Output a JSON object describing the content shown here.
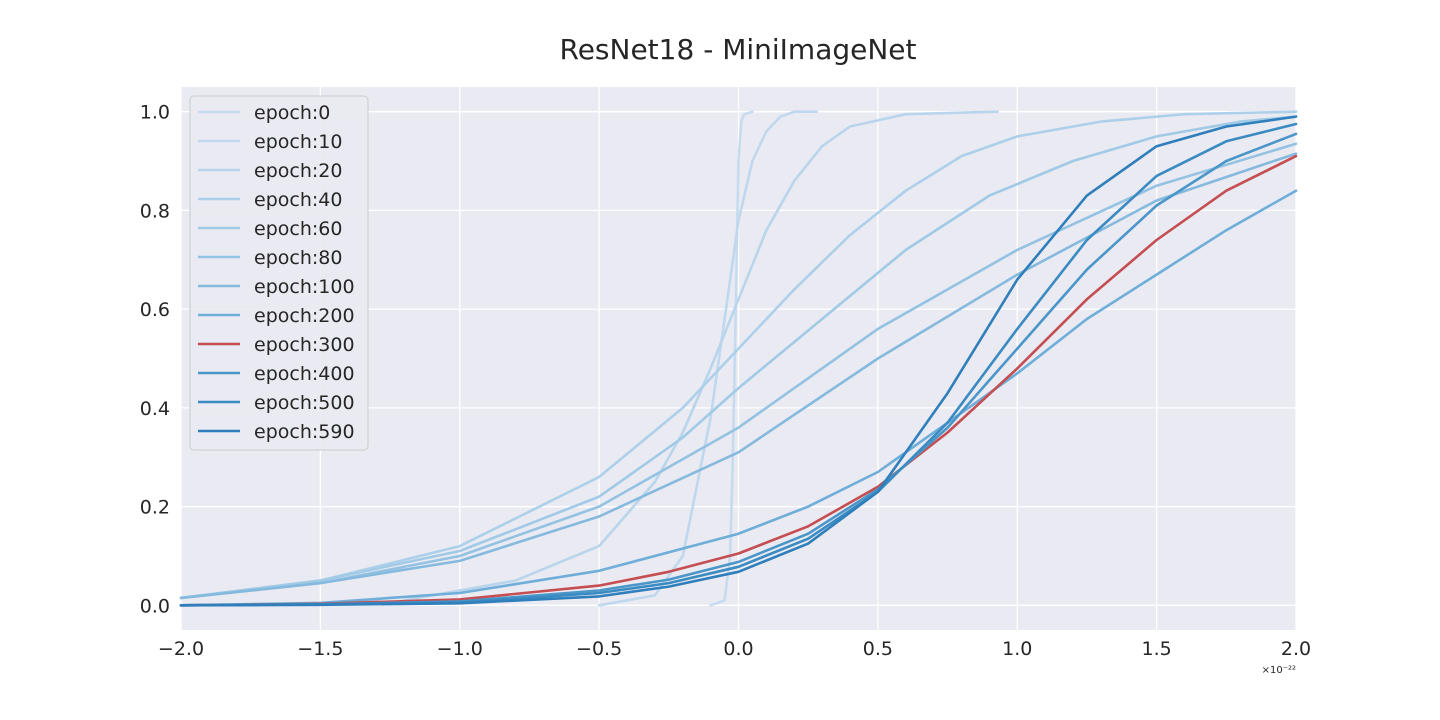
{
  "chart_data": {
    "type": "line",
    "title": "ResNet18 - MiniImageNet",
    "xlabel": "",
    "ylabel": "",
    "x_offset_label": "×10⁻²²",
    "xlim": [
      -2.0,
      2.0
    ],
    "ylim": [
      -0.05,
      1.05
    ],
    "xticks": [
      -2.0,
      -1.5,
      -1.0,
      -0.5,
      0.0,
      0.5,
      1.0,
      1.5,
      2.0
    ],
    "xtick_labels": [
      "−2.0",
      "−1.5",
      "−1.0",
      "−0.5",
      "0.0",
      "0.5",
      "1.0",
      "1.5",
      "2.0"
    ],
    "yticks": [
      0.0,
      0.2,
      0.4,
      0.6,
      0.8,
      1.0
    ],
    "ytick_labels": [
      "0.0",
      "0.2",
      "0.4",
      "0.6",
      "0.8",
      "1.0"
    ],
    "grid": true,
    "background": "#eaeaf2",
    "legend_position": "top-left",
    "series": [
      {
        "name": "epoch:0",
        "color": "#c6dbef",
        "x": [
          -0.1,
          -0.05,
          -0.03,
          -0.02,
          -0.01,
          0.0,
          0.01,
          0.02,
          0.05
        ],
        "y": [
          0.0,
          0.01,
          0.1,
          0.3,
          0.6,
          0.9,
          0.98,
          0.995,
          1.0
        ]
      },
      {
        "name": "epoch:10",
        "color": "#bfd8ee",
        "x": [
          -0.5,
          -0.3,
          -0.2,
          -0.1,
          -0.05,
          0.0,
          0.05,
          0.1,
          0.15,
          0.2,
          0.28
        ],
        "y": [
          0.0,
          0.02,
          0.1,
          0.38,
          0.58,
          0.78,
          0.9,
          0.96,
          0.99,
          1.0,
          1.0
        ]
      },
      {
        "name": "epoch:20",
        "color": "#b8d5ec",
        "x": [
          -1.2,
          -0.8,
          -0.5,
          -0.3,
          -0.2,
          -0.1,
          0.0,
          0.1,
          0.2,
          0.3,
          0.4,
          0.6,
          0.93
        ],
        "y": [
          0.01,
          0.05,
          0.12,
          0.25,
          0.35,
          0.48,
          0.62,
          0.76,
          0.86,
          0.93,
          0.97,
          0.995,
          1.0
        ]
      },
      {
        "name": "epoch:40",
        "color": "#add0ea",
        "x": [
          -2.0,
          -1.5,
          -1.0,
          -0.5,
          -0.2,
          0.0,
          0.2,
          0.4,
          0.6,
          0.8,
          1.0,
          1.3,
          1.6,
          2.0
        ],
        "y": [
          0.015,
          0.05,
          0.12,
          0.26,
          0.4,
          0.52,
          0.64,
          0.75,
          0.84,
          0.91,
          0.95,
          0.98,
          0.995,
          1.0
        ]
      },
      {
        "name": "epoch:60",
        "color": "#a1cae6",
        "x": [
          -2.0,
          -1.5,
          -1.0,
          -0.5,
          -0.2,
          0.0,
          0.3,
          0.6,
          0.9,
          1.2,
          1.5,
          1.8,
          2.0
        ],
        "y": [
          0.015,
          0.05,
          0.11,
          0.22,
          0.34,
          0.44,
          0.58,
          0.72,
          0.83,
          0.9,
          0.95,
          0.98,
          0.99
        ]
      },
      {
        "name": "epoch:80",
        "color": "#93c2e2",
        "x": [
          -2.0,
          -1.5,
          -1.0,
          -0.5,
          0.0,
          0.5,
          1.0,
          1.5,
          2.0
        ],
        "y": [
          0.015,
          0.045,
          0.1,
          0.2,
          0.36,
          0.56,
          0.72,
          0.85,
          0.935
        ]
      },
      {
        "name": "epoch:100",
        "color": "#85bade",
        "x": [
          -2.0,
          -1.5,
          -1.0,
          -0.5,
          0.0,
          0.5,
          1.0,
          1.5,
          2.0
        ],
        "y": [
          0.015,
          0.045,
          0.09,
          0.18,
          0.31,
          0.5,
          0.67,
          0.82,
          0.915
        ]
      },
      {
        "name": "epoch:200",
        "color": "#6eaed8",
        "x": [
          -2.0,
          -1.5,
          -1.0,
          -0.5,
          0.0,
          0.25,
          0.5,
          0.75,
          1.0,
          1.25,
          1.5,
          1.75,
          2.0
        ],
        "y": [
          0.0,
          0.005,
          0.025,
          0.07,
          0.145,
          0.2,
          0.27,
          0.37,
          0.47,
          0.58,
          0.67,
          0.76,
          0.84
        ]
      },
      {
        "name": "epoch:300",
        "color": "#c44e52",
        "x": [
          -2.0,
          -1.5,
          -1.0,
          -0.5,
          -0.25,
          0.0,
          0.25,
          0.5,
          0.75,
          1.0,
          1.25,
          1.5,
          1.75,
          2.0
        ],
        "y": [
          0.0,
          0.003,
          0.012,
          0.04,
          0.068,
          0.105,
          0.16,
          0.24,
          0.35,
          0.48,
          0.62,
          0.74,
          0.84,
          0.91
        ]
      },
      {
        "name": "epoch:400",
        "color": "#4b96c9",
        "x": [
          -2.0,
          -1.5,
          -1.0,
          -0.5,
          -0.25,
          0.0,
          0.25,
          0.5,
          0.75,
          1.0,
          1.25,
          1.5,
          1.75,
          2.0
        ],
        "y": [
          0.0,
          0.002,
          0.008,
          0.03,
          0.052,
          0.088,
          0.145,
          0.235,
          0.36,
          0.52,
          0.68,
          0.81,
          0.9,
          0.955
        ]
      },
      {
        "name": "epoch:500",
        "color": "#3a8bc2",
        "x": [
          -2.0,
          -1.5,
          -1.0,
          -0.5,
          -0.25,
          0.0,
          0.25,
          0.5,
          0.75,
          1.0,
          1.25,
          1.5,
          1.75,
          2.0
        ],
        "y": [
          0.0,
          0.002,
          0.006,
          0.025,
          0.045,
          0.078,
          0.135,
          0.23,
          0.37,
          0.56,
          0.74,
          0.87,
          0.94,
          0.975
        ]
      },
      {
        "name": "epoch:590",
        "color": "#2f7fbc",
        "x": [
          -2.0,
          -1.5,
          -1.0,
          -0.5,
          -0.25,
          0.0,
          0.25,
          0.5,
          0.75,
          1.0,
          1.25,
          1.5,
          1.75,
          2.0
        ],
        "y": [
          0.0,
          0.001,
          0.004,
          0.018,
          0.038,
          0.068,
          0.125,
          0.23,
          0.43,
          0.66,
          0.83,
          0.93,
          0.97,
          0.99
        ]
      }
    ]
  }
}
